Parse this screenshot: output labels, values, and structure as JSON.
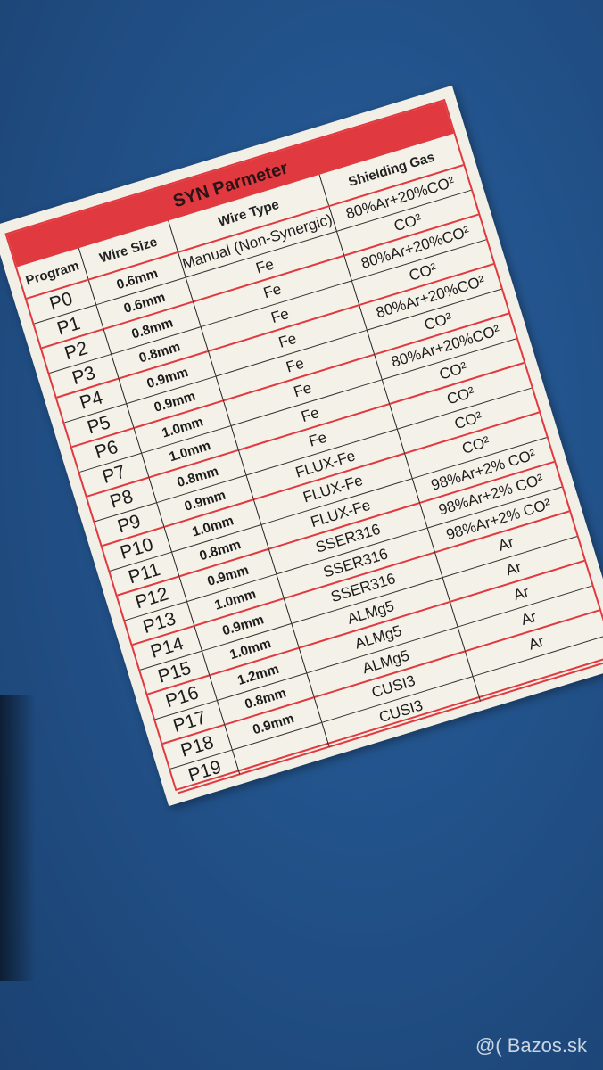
{
  "label": {
    "title": "SYN Parmeter",
    "headers": [
      "Program",
      "Wire Size",
      "Wire Type",
      "Shielding Gas"
    ],
    "programs": [
      "P0",
      "P1",
      "P2",
      "P3",
      "P4",
      "P5",
      "P6",
      "P7",
      "P8",
      "P9",
      "P10",
      "P11",
      "P12",
      "P13",
      "P14",
      "P15",
      "P16",
      "P17",
      "P18",
      "P19"
    ],
    "wire_sizes": [
      "0.6mm",
      "0.6mm",
      "0.8mm",
      "0.8mm",
      "0.9mm",
      "0.9mm",
      "1.0mm",
      "1.0mm",
      "0.8mm",
      "0.9mm",
      "1.0mm",
      "0.8mm",
      "0.9mm",
      "1.0mm",
      "0.9mm",
      "1.0mm",
      "1.2mm",
      "0.8mm",
      "0.9mm"
    ],
    "wire_types": [
      "Manual (Non-Synergic)",
      "Fe",
      "Fe",
      "Fe",
      "Fe",
      "Fe",
      "Fe",
      "Fe",
      "Fe",
      "FLUX-Fe",
      "FLUX-Fe",
      "FLUX-Fe",
      "SSER316",
      "SSER316",
      "SSER316",
      "ALMg5",
      "ALMg5",
      "ALMg5",
      "CUSI3",
      "CUSI3"
    ],
    "shielding_gases": [
      "80%Ar+20%CO²",
      "CO²",
      "80%Ar+20%CO²",
      "CO²",
      "80%Ar+20%CO²",
      "CO²",
      "80%Ar+20%CO²",
      "CO²",
      "CO²",
      "CO²",
      "CO²",
      "98%Ar+2% CO²",
      "98%Ar+2% CO²",
      "98%Ar+2% CO²",
      "Ar",
      "Ar",
      "Ar",
      "Ar",
      "Ar"
    ],
    "colors": {
      "accent_red": "#e0393f",
      "background_blue": "#22528a",
      "label_bg": "#f2f0e6"
    }
  },
  "watermark": "@( Bazos.sk"
}
